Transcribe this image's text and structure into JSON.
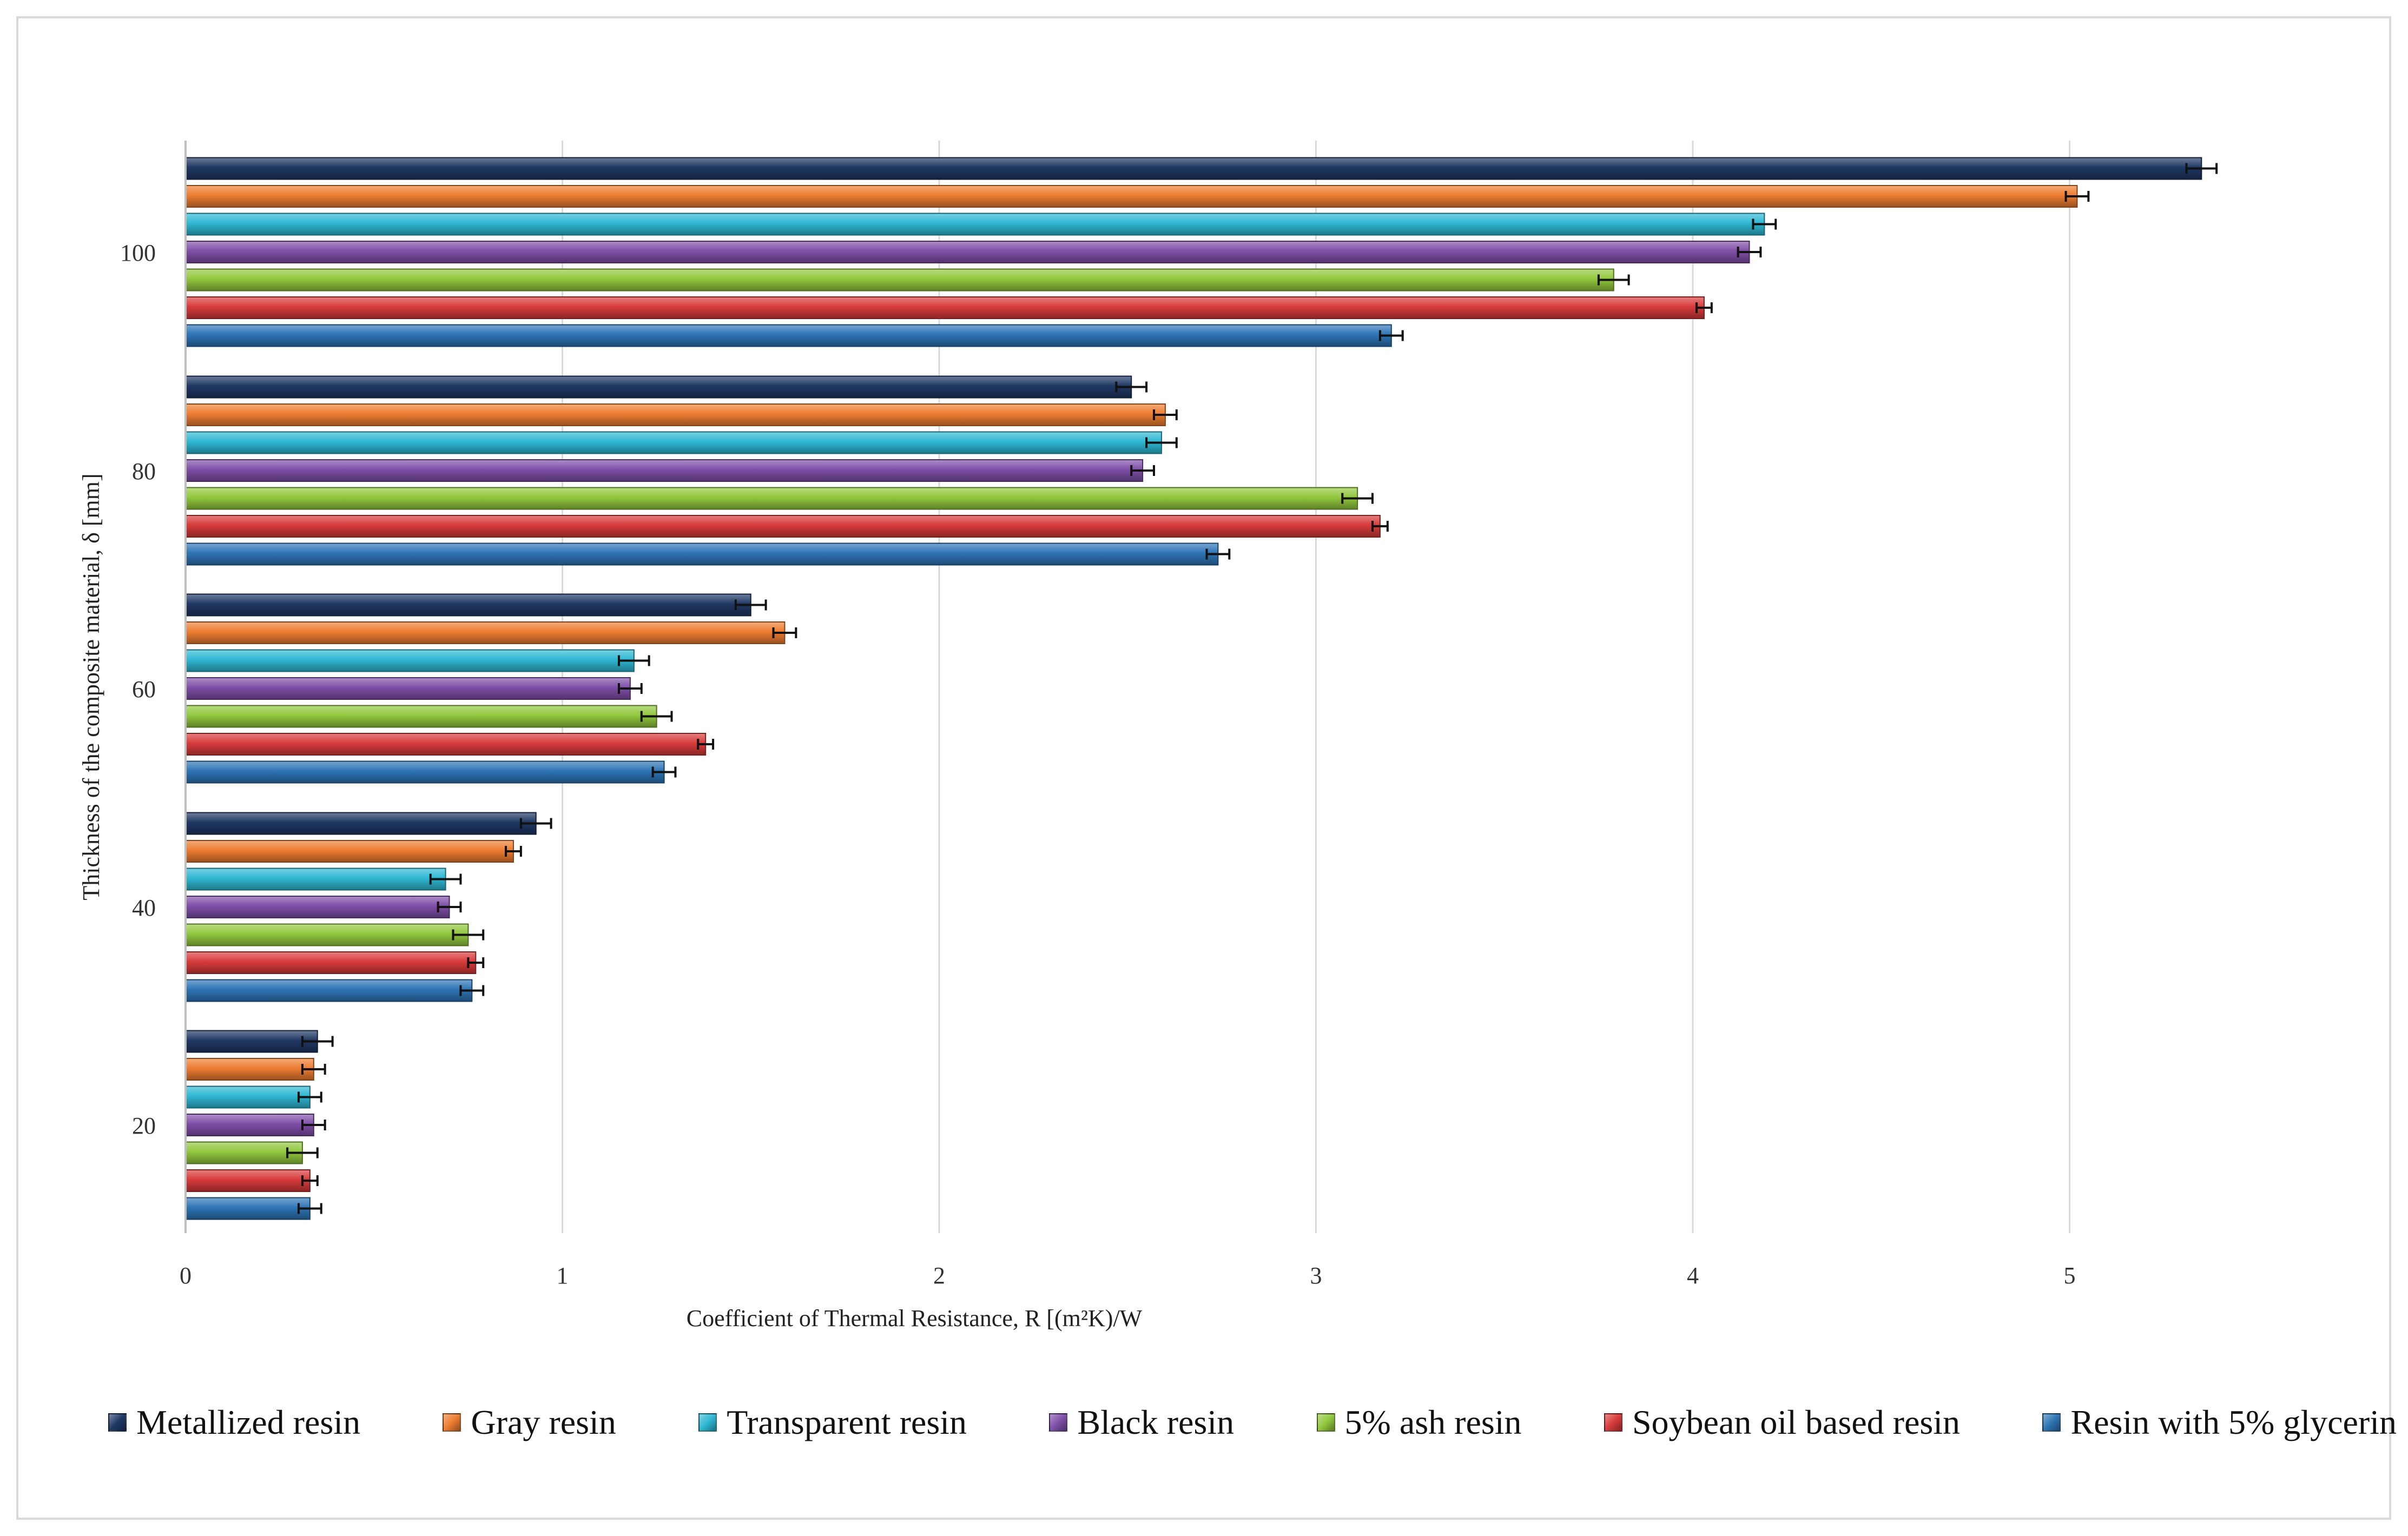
{
  "chart_data": {
    "type": "bar",
    "orientation": "horizontal",
    "title": "",
    "xlabel": "Coefficient of Thermal Resistance, R [(m²K)/W",
    "ylabel": "Thickness of the composite material, δ [mm]",
    "xlim": [
      0,
      5.5
    ],
    "x_ticks": [
      "0",
      "1",
      "2",
      "3",
      "4",
      "5"
    ],
    "categories": [
      "20",
      "40",
      "60",
      "80",
      "100"
    ],
    "grid": "vertical",
    "legend_position": "bottom",
    "error_bars": true,
    "series": [
      {
        "name": "Metallized resin",
        "color": "#1f3864",
        "values": [
          0.35,
          0.93,
          1.5,
          2.51,
          5.35
        ],
        "errors": [
          0.04,
          0.04,
          0.04,
          0.04,
          0.04
        ]
      },
      {
        "name": "Gray resin",
        "color": "#ed7d31",
        "values": [
          0.34,
          0.87,
          1.59,
          2.6,
          5.02
        ],
        "errors": [
          0.03,
          0.02,
          0.03,
          0.03,
          0.03
        ]
      },
      {
        "name": "Transparent resin",
        "color": "#2fb8d4",
        "values": [
          0.33,
          0.69,
          1.19,
          2.59,
          4.19
        ],
        "errors": [
          0.03,
          0.04,
          0.04,
          0.04,
          0.03
        ]
      },
      {
        "name": "Black resin",
        "color": "#7f4fa8",
        "values": [
          0.34,
          0.7,
          1.18,
          2.54,
          4.15
        ],
        "errors": [
          0.03,
          0.03,
          0.03,
          0.03,
          0.03
        ]
      },
      {
        "name": "5% ash resin",
        "color": "#92c83e",
        "values": [
          0.31,
          0.75,
          1.25,
          3.11,
          3.79
        ],
        "errors": [
          0.04,
          0.04,
          0.04,
          0.04,
          0.04
        ]
      },
      {
        "name": "Soybean oil based resin",
        "color": "#d83b3b",
        "values": [
          0.33,
          0.77,
          1.38,
          3.17,
          4.03
        ],
        "errors": [
          0.02,
          0.02,
          0.02,
          0.02,
          0.02
        ]
      },
      {
        "name": "Resin with 5% glycerin",
        "color": "#2e75b6",
        "values": [
          0.33,
          0.76,
          1.27,
          2.74,
          3.2
        ],
        "errors": [
          0.03,
          0.03,
          0.03,
          0.03,
          0.03
        ]
      }
    ]
  }
}
